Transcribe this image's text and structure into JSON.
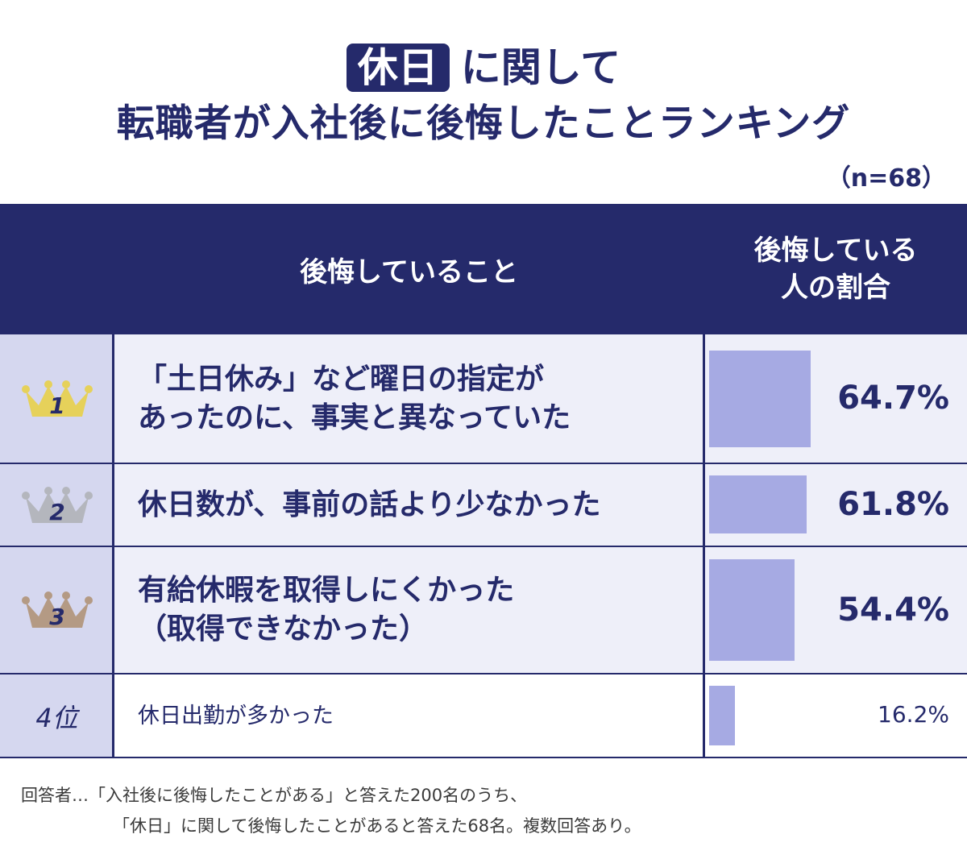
{
  "title": {
    "badge": "休日",
    "line1_rest": "に関して",
    "line2": "転職者が入社後に後悔したことランキング"
  },
  "sample_size": "（n=68）",
  "table": {
    "header_item": "後悔していること",
    "header_pct_line1": "後悔している",
    "header_pct_line2": "人の割合"
  },
  "rows": [
    {
      "rank": "1",
      "line1": "「土日休み」など曜日の指定が",
      "line2": "あったのに、事実と異なっていた",
      "pct": "64.7%"
    },
    {
      "rank": "2",
      "line1": "休日数が、事前の話より少なかった",
      "line2": "",
      "pct": "61.8%"
    },
    {
      "rank": "3",
      "line1": "有給休暇を取得しにくかった",
      "line2": "（取得できなかった）",
      "pct": "54.4%"
    },
    {
      "rank": "4位",
      "line1": "休日出勤が多かった",
      "line2": "",
      "pct": "16.2%"
    }
  ],
  "crown_colors": {
    "gold": "#e6d15a",
    "silver": "#b4b6bd",
    "bronze": "#b49a84"
  },
  "bar_color": "#a6aae3",
  "navy": "#252a6b",
  "footer": {
    "line1": "回答者…「入社後に後悔したことがある」と答えた200名のうち、",
    "line2": "「休日」に関して後悔したことがあると答えた68名。複数回答あり。"
  },
  "chart_data": {
    "type": "bar",
    "categories": [
      "「土日休み」など曜日の指定があったのに、事実と異なっていた",
      "休日数が、事前の話より少なかった",
      "有給休暇を取得しにくかった（取得できなかった）",
      "休日出勤が多かった"
    ],
    "values": [
      64.7,
      61.8,
      54.4,
      16.2
    ],
    "title": "休日に関して転職者が入社後に後悔したことランキング",
    "xlabel": "",
    "ylabel": "後悔している人の割合",
    "unit": "%",
    "ylim": [
      0,
      100
    ]
  }
}
